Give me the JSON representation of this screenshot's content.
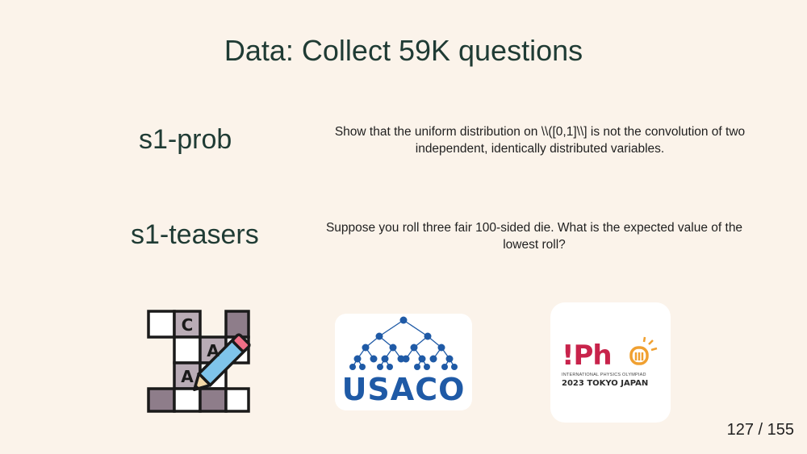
{
  "slide": {
    "title": "Data: Collect 59K questions",
    "page_number": "127 / 155"
  },
  "examples": [
    {
      "dataset": "s1-prob",
      "question": "Show that the uniform distribution on \\\\([0,1]\\\\] is not the convolution of two independent, identically distributed variables."
    },
    {
      "dataset": "s1-teasers",
      "question": "Suppose you roll three fair 100-sided die. What is the expected value of the lowest roll?"
    }
  ],
  "logos": {
    "crossword": {
      "letters": [
        "C",
        "A",
        "A"
      ]
    },
    "usaco": {
      "text": "USACO"
    },
    "ipho": {
      "mark": "!Ph",
      "subtitle": "INTERNATIONAL PHYSICS OLYMPIAD",
      "year_location": "2023 TOKYO JAPAN"
    }
  },
  "colors": {
    "background": "#fbf3ea",
    "title_text": "#1f3b34",
    "usaco_blue": "#1f5aa6",
    "ipho_red": "#c8234b",
    "ipho_orange": "#f0a030"
  }
}
